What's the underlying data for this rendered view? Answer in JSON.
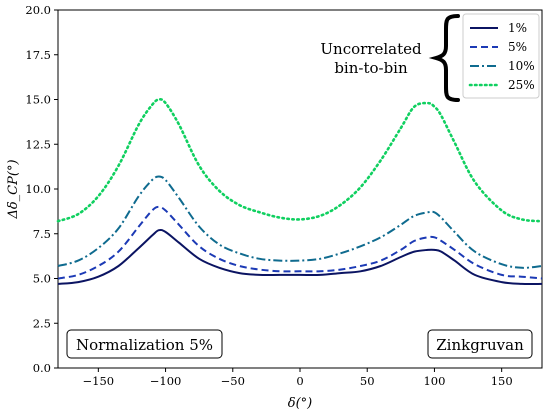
{
  "chart_data": {
    "type": "line",
    "xlabel": "δ(°)",
    "ylabel": "Δδ_CP(°)",
    "xlim": [
      -180,
      180
    ],
    "ylim": [
      0,
      20
    ],
    "xticks": [
      -150,
      -100,
      -50,
      0,
      50,
      100,
      150
    ],
    "yticks": [
      0.0,
      2.5,
      5.0,
      7.5,
      10.0,
      12.5,
      15.0,
      17.5,
      20.0
    ],
    "x": [
      -180,
      -165,
      -150,
      -135,
      -120,
      -110,
      -105,
      -100,
      -90,
      -75,
      -60,
      -45,
      -30,
      -15,
      0,
      15,
      30,
      45,
      60,
      75,
      85,
      95,
      100,
      105,
      115,
      130,
      150,
      165,
      180
    ],
    "series": [
      {
        "name": "1%",
        "color": "#0b1462",
        "dash": "solid",
        "values": [
          4.7,
          4.8,
          5.1,
          5.7,
          6.7,
          7.4,
          7.7,
          7.6,
          7.0,
          6.1,
          5.6,
          5.3,
          5.2,
          5.2,
          5.2,
          5.2,
          5.3,
          5.4,
          5.7,
          6.2,
          6.5,
          6.6,
          6.6,
          6.5,
          6.0,
          5.2,
          4.8,
          4.7,
          4.7
        ]
      },
      {
        "name": "5%",
        "color": "#1c3ab5",
        "dash": "dashed",
        "values": [
          5.0,
          5.2,
          5.7,
          6.5,
          7.9,
          8.8,
          9.0,
          8.8,
          8.0,
          6.8,
          6.1,
          5.7,
          5.5,
          5.4,
          5.4,
          5.4,
          5.5,
          5.7,
          6.0,
          6.6,
          7.1,
          7.3,
          7.3,
          7.1,
          6.6,
          5.8,
          5.2,
          5.1,
          5.0
        ]
      },
      {
        "name": "10%",
        "color": "#0f6b8f",
        "dash": "dashdot",
        "values": [
          5.7,
          6.0,
          6.7,
          7.8,
          9.6,
          10.5,
          10.7,
          10.5,
          9.5,
          7.9,
          6.9,
          6.4,
          6.1,
          6.0,
          6.0,
          6.1,
          6.4,
          6.8,
          7.3,
          8.0,
          8.5,
          8.7,
          8.7,
          8.4,
          7.6,
          6.5,
          5.8,
          5.6,
          5.7
        ]
      },
      {
        "name": "25%",
        "color": "#10d060",
        "dash": "dotted",
        "values": [
          8.2,
          8.6,
          9.6,
          11.3,
          13.6,
          14.7,
          15.0,
          14.8,
          13.6,
          11.3,
          9.9,
          9.1,
          8.7,
          8.4,
          8.3,
          8.5,
          9.1,
          10.1,
          11.6,
          13.4,
          14.6,
          14.8,
          14.6,
          14.1,
          12.6,
          10.4,
          8.8,
          8.3,
          8.2
        ]
      }
    ],
    "legend_position": "top-right",
    "legend_brace_label": [
      "Uncorrelated",
      "bin-to-bin"
    ],
    "annotations": {
      "normalization": "Normalization 5%",
      "site": "Zinkgruvan"
    },
    "grid": false
  }
}
